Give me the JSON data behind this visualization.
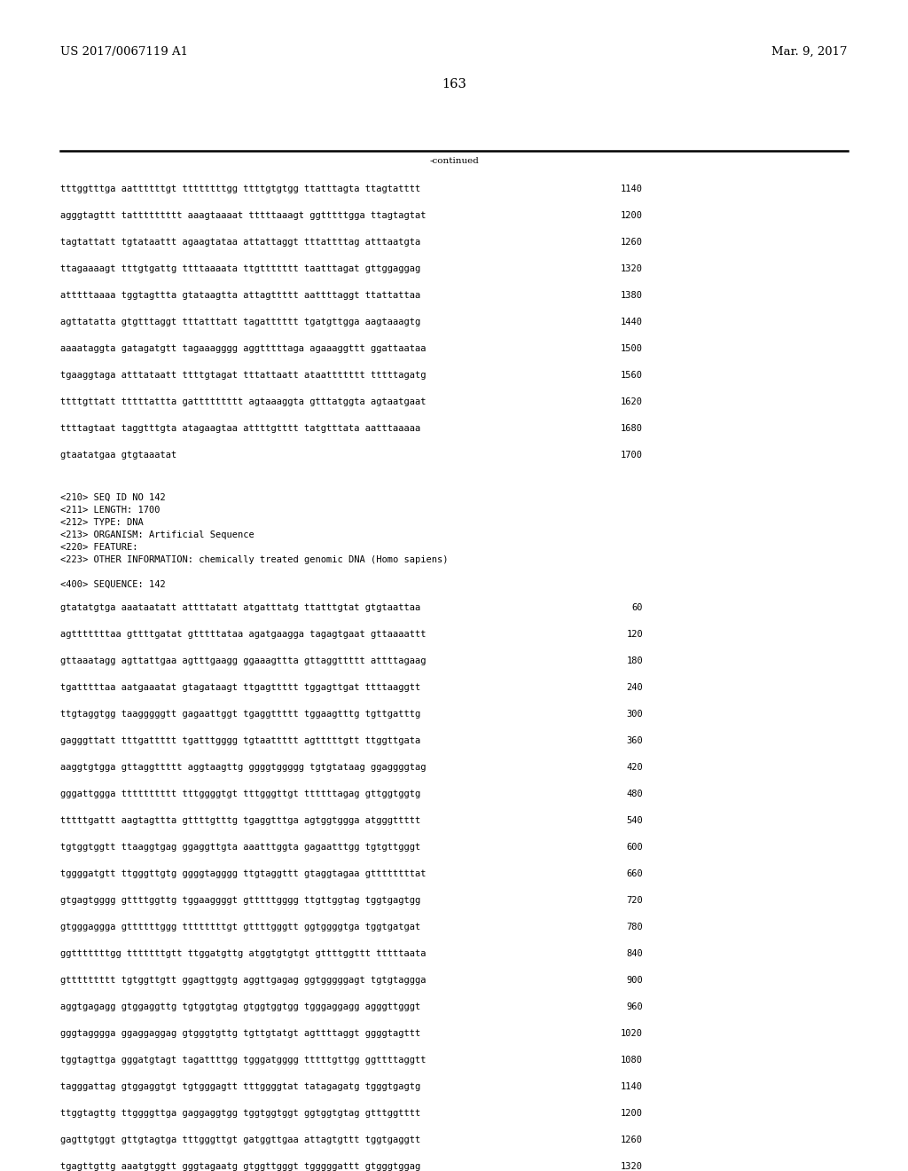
{
  "header_left": "US 2017/0067119 A1",
  "header_right": "Mar. 9, 2017",
  "page_number": "163",
  "continued_label": "-continued",
  "background_color": "#ffffff",
  "text_color": "#000000",
  "font_size_header": 9.5,
  "font_size_body": 7.5,
  "font_size_page": 10.5,
  "sequence_lines_top": [
    [
      "tttggtttga aattttttgt ttttttttgg ttttgtgtgg ttatttagta ttagtatttt",
      "1140"
    ],
    [
      "agggtagttt tattttttttt aaagtaaaat tttttaaagt ggtttttgga ttagtagtat",
      "1200"
    ],
    [
      "tagtattatt tgtataattt agaagtataa attattaggt tttattttag atttaatgta",
      "1260"
    ],
    [
      "ttagaaaagt tttgtgattg ttttaaaata ttgttttttt taatttagat gttggaggag",
      "1320"
    ],
    [
      "atttttaaaa tggtagttta gtataagtta attagttttt aattttaggt ttattattaa",
      "1380"
    ],
    [
      "agttatatta gtgtttaggt tttatttatt tagatttttt tgatgttgga aagtaaagtg",
      "1440"
    ],
    [
      "aaaataggta gatagatgtt tagaaagggg aggtttttaga agaaaggttt ggattaataa",
      "1500"
    ],
    [
      "tgaaggtaga atttataatt ttttgtagat tttattaatt ataattttttt tttttagatg",
      "1560"
    ],
    [
      "ttttgttatt tttttattta gattttttttt agtaaaggta gtttatggta agtaatgaat",
      "1620"
    ],
    [
      "ttttagtaat taggtttgta atagaagtaa attttgtttt tatgtttata aatttaaaaa",
      "1680"
    ],
    [
      "gtaatatgaa gtgtaaatat",
      "1700"
    ]
  ],
  "metadata_lines": [
    "<210> SEQ ID NO 142",
    "<211> LENGTH: 1700",
    "<212> TYPE: DNA",
    "<213> ORGANISM: Artificial Sequence",
    "<220> FEATURE:",
    "<223> OTHER INFORMATION: chemically treated genomic DNA (Homo sapiens)"
  ],
  "sequence_label": "<400> SEQUENCE: 142",
  "sequence_lines_bottom": [
    [
      "gtatatgtga aaataatatt attttatatt atgatttatg ttatttgtat gtgtaattaa",
      "60"
    ],
    [
      "agtttttttaa gttttgatat gtttttataa agatgaagga tagagtgaat gttaaaattt",
      "120"
    ],
    [
      "gttaaatagg agttattgaa agtttgaagg ggaaagttta gttaggttttt attttagaag",
      "180"
    ],
    [
      "tgatttttaa aatgaaatat gtagataagt ttgagttttt tggagttgat ttttaaggtt",
      "240"
    ],
    [
      "ttgtaggtgg taagggggtt gagaattggt tgaggttttt tggaagtttg tgttgatttg",
      "300"
    ],
    [
      "gagggttatt tttgattttt tgatttgggg tgtaattttt agtttttgtt ttggttgata",
      "360"
    ],
    [
      "aaggtgtgga gttaggttttt aggtaagttg ggggtggggg tgtgtataag ggaggggtag",
      "420"
    ],
    [
      "gggattggga tttttttttt tttggggtgt tttgggttgt ttttttagag gttggtggtg",
      "480"
    ],
    [
      "tttttgattt aagtagttta gttttgtttg tgaggtttga agtggtggga atgggttttt",
      "540"
    ],
    [
      "tgtggtggtt ttaaggtgag ggaggttgta aaatttggta gagaatttgg tgtgttgggt",
      "600"
    ],
    [
      "tggggatgtt ttgggttgtg ggggtagggg ttgtaggttt gtaggtagaa gttttttttat",
      "660"
    ],
    [
      "gtgagtgggg gttttggttg tggaaggggt gtttttgggg ttgttggtag tggtgagtgg",
      "720"
    ],
    [
      "gtgggaggga gttttttggg ttttttttgt gttttgggtt ggtggggtga tggtgatgat",
      "780"
    ],
    [
      "ggtttttttgg tttttttgtt ttggatgttg atggtgtgtgt gttttggttt tttttaata",
      "840"
    ],
    [
      "gttttttttt tgtggttgtt ggagttggtg aggttgagag ggtgggggagt tgtgtaggga",
      "900"
    ],
    [
      "aggtgagagg gtggaggttg tgtggtgtag gtggtggtgg tgggaggagg agggttgggt",
      "960"
    ],
    [
      "gggtagggga ggaggaggag gtgggtgttg tgttgtatgt agttttaggt ggggtagttt",
      "1020"
    ],
    [
      "tggtagttga gggatgtagt tagattttgg tgggatgggg tttttgttgg ggttttaggtt",
      "1080"
    ],
    [
      "tagggattag gtggaggtgt tgtgggagtt tttggggtat tatagagatg tgggtgagtg",
      "1140"
    ],
    [
      "ttggtagttg ttggggttga gaggaggtgg tggtggtggt ggtggtgtag gtttggtttt",
      "1200"
    ],
    [
      "gagttgtggt gttgtagtga tttgggttgt gatggttgaa attagtgttt tggtgaggtt",
      "1260"
    ],
    [
      "tgagttgttg aaatgtggtt gggtagaatg gtggttgggt tgggggattt gtgggtggag",
      "1320"
    ]
  ]
}
